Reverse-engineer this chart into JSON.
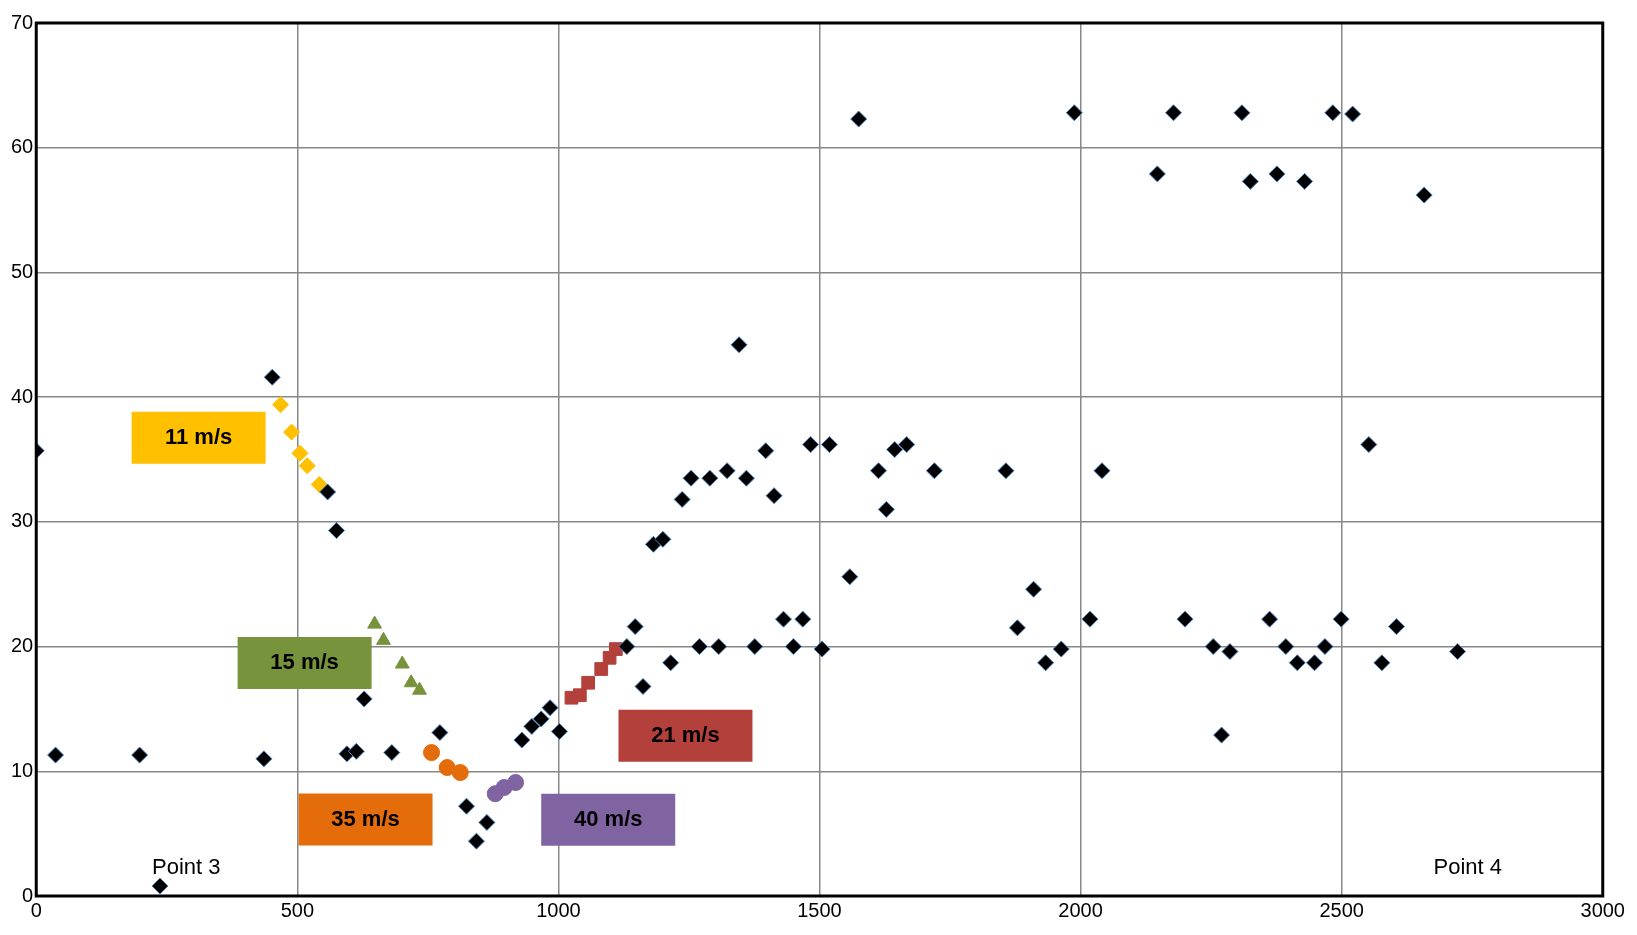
{
  "chart_data": {
    "type": "scatter",
    "xlim": [
      0,
      3000
    ],
    "xticks": [
      0,
      500,
      1000,
      1500,
      2000,
      2500,
      3000
    ],
    "ylim": [
      0,
      70
    ],
    "yticks": [
      0,
      10,
      20,
      30,
      40,
      50,
      60,
      70
    ],
    "grid": true,
    "legend": false,
    "series": [
      {
        "color": "#000000",
        "marker": "diamond",
        "x": [
          0,
          37,
          198,
          237,
          436,
          452,
          558,
          575,
          595,
          613,
          628,
          681,
          773,
          824,
          843,
          863,
          930,
          949,
          967,
          984,
          1002,
          1131,
          1147,
          1162,
          1182,
          1200,
          1215,
          1237,
          1254,
          1270,
          1290,
          1307,
          1323,
          1346,
          1360,
          1376,
          1397,
          1413,
          1431,
          1450,
          1468,
          1483,
          1505,
          1519,
          1558,
          1575,
          1613,
          1628,
          1644,
          1667,
          1720,
          1857,
          1879,
          1910,
          1933,
          1963,
          1988,
          2018,
          2041,
          2147,
          2178,
          2200,
          2254,
          2270,
          2286,
          2309,
          2325,
          2362,
          2376,
          2393,
          2415,
          2429,
          2448,
          2468,
          2483,
          2499,
          2521,
          2552,
          2577,
          2605,
          2658,
          2722
        ],
        "values": [
          35.7,
          11.3,
          11.3,
          0.8,
          11.0,
          41.6,
          32.4,
          29.3,
          11.4,
          11.6,
          15.8,
          11.5,
          13.1,
          7.2,
          4.4,
          5.9,
          12.5,
          13.6,
          14.2,
          15.1,
          13.2,
          20.0,
          21.6,
          16.8,
          28.2,
          28.6,
          18.7,
          31.8,
          33.5,
          20.0,
          33.5,
          20.0,
          34.1,
          44.2,
          33.5,
          20.0,
          35.7,
          32.1,
          22.2,
          20.0,
          22.2,
          36.2,
          19.8,
          36.2,
          25.6,
          62.3,
          34.1,
          31.0,
          35.8,
          36.2,
          34.1,
          34.1,
          21.5,
          24.6,
          18.7,
          19.8,
          62.8,
          22.2,
          34.1,
          57.9,
          62.8,
          22.2,
          20.0,
          12.9,
          19.6,
          62.8,
          57.3,
          22.2,
          57.9,
          20.0,
          18.7,
          57.3,
          18.7,
          20.0,
          62.8,
          22.2,
          62.7,
          36.2,
          18.7,
          21.6,
          56.2,
          19.6
        ]
      },
      {
        "name": "11 m/s",
        "color": "#ffc000",
        "marker": "diamond",
        "x": [
          468,
          489,
          505,
          519,
          542
        ],
        "values": [
          39.4,
          37.2,
          35.5,
          34.5,
          33.0
        ]
      },
      {
        "name": "15 m/s",
        "color": "#77933c",
        "marker": "triangle",
        "x": [
          648,
          665,
          701,
          718,
          734
        ],
        "values": [
          21.8,
          20.5,
          18.6,
          17.1,
          16.5
        ]
      },
      {
        "name": "35 m/s",
        "color": "#e46c0a",
        "marker": "circle",
        "x": [
          757,
          787,
          812
        ],
        "values": [
          11.5,
          10.3,
          9.9
        ]
      },
      {
        "name": "40 m/s",
        "color": "#8064a2",
        "marker": "circle",
        "x": [
          879,
          896,
          918
        ],
        "values": [
          8.2,
          8.7,
          9.1
        ]
      },
      {
        "name": "21 m/s",
        "color": "#b3403a",
        "marker": "square",
        "x": [
          1025,
          1041,
          1057,
          1082,
          1098,
          1110
        ],
        "values": [
          15.9,
          16.1,
          17.1,
          18.2,
          19.1,
          19.8
        ]
      }
    ],
    "annotations": [
      "Point 3",
      "Point 4"
    ]
  }
}
